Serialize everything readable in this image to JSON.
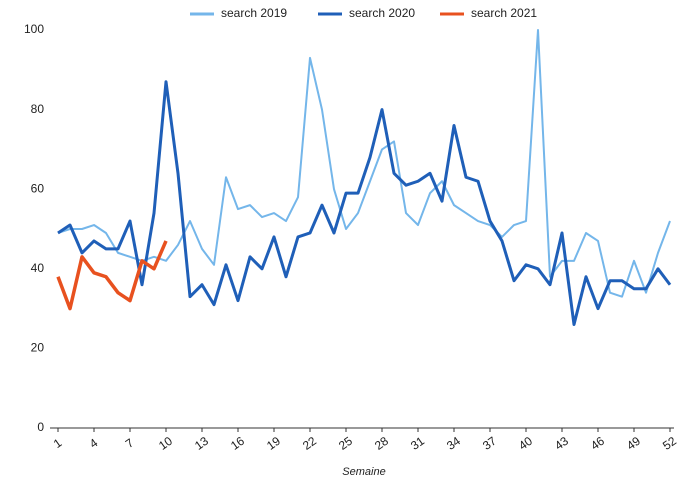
{
  "chart_data": {
    "type": "line",
    "x_label": "Semaine",
    "x": [
      1,
      2,
      3,
      4,
      5,
      6,
      7,
      8,
      9,
      10,
      11,
      12,
      13,
      14,
      15,
      16,
      17,
      18,
      19,
      20,
      21,
      22,
      23,
      24,
      25,
      26,
      27,
      28,
      29,
      30,
      31,
      32,
      33,
      34,
      35,
      36,
      37,
      38,
      39,
      40,
      41,
      42,
      43,
      44,
      45,
      46,
      47,
      48,
      49,
      50,
      51,
      52
    ],
    "xlim": [
      1,
      52
    ],
    "xticks": [
      1,
      4,
      7,
      10,
      13,
      16,
      19,
      22,
      25,
      28,
      31,
      34,
      37,
      40,
      43,
      46,
      49,
      52
    ],
    "ylim": [
      0,
      100
    ],
    "yticks": [
      0,
      20,
      40,
      60,
      80,
      100
    ],
    "grid": false,
    "legend": "top",
    "series": [
      {
        "name": "search 2019",
        "color": "#74b6ea",
        "values": [
          49,
          50,
          50,
          51,
          49,
          44,
          43,
          42,
          43,
          42,
          46,
          52,
          45,
          41,
          63,
          55,
          56,
          53,
          54,
          52,
          58,
          93,
          80,
          60,
          50,
          54,
          62,
          70,
          72,
          54,
          51,
          59,
          62,
          56,
          54,
          52,
          51,
          48,
          51,
          52,
          100,
          38,
          42,
          42,
          49,
          47,
          34,
          33,
          42,
          34,
          44,
          52
        ]
      },
      {
        "name": "search 2020",
        "color": "#1f5fb8",
        "values": [
          49,
          51,
          44,
          47,
          45,
          45,
          52,
          36,
          54,
          87,
          64,
          33,
          36,
          31,
          41,
          32,
          43,
          40,
          48,
          38,
          48,
          49,
          56,
          49,
          59,
          59,
          68,
          80,
          64,
          61,
          62,
          64,
          57,
          76,
          63,
          62,
          52,
          47,
          37,
          41,
          40,
          36,
          49,
          26,
          38,
          30,
          37,
          37,
          35,
          35,
          40,
          36
        ]
      },
      {
        "name": "search 2021",
        "color": "#e8511f",
        "values": [
          38,
          30,
          43,
          39,
          38,
          34,
          32,
          42,
          40,
          47,
          null,
          null,
          null,
          null,
          null,
          null,
          null,
          null,
          null,
          null,
          null,
          null,
          null,
          null,
          null,
          null,
          null,
          null,
          null,
          null,
          null,
          null,
          null,
          null,
          null,
          null,
          null,
          null,
          null,
          null,
          null,
          null,
          null,
          null,
          null,
          null,
          null,
          null,
          null,
          null,
          null,
          null
        ]
      }
    ]
  }
}
